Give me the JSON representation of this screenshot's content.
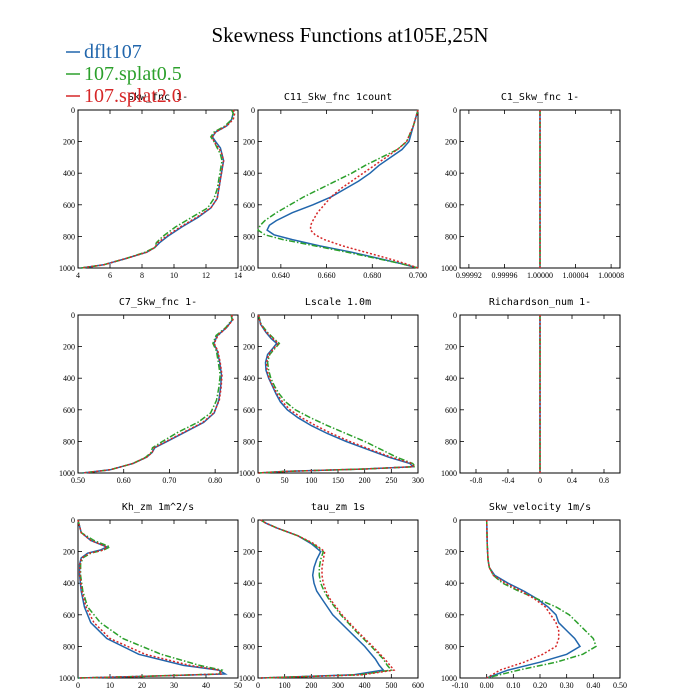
{
  "figure": {
    "title": "Skewness Functions at105E,25N"
  },
  "colors": {
    "dflt107": "#2166ac",
    "splat0_5": "#2ca02c",
    "splat2_0": "#d62728"
  },
  "legend": [
    {
      "label": "dflt107",
      "color": "#2166ac",
      "dash": "solid"
    },
    {
      "label": "107.splat0.5",
      "color": "#2ca02c",
      "dash": "dashdot"
    },
    {
      "label": "107.splat2.0",
      "color": "#d62728",
      "dash": "dot"
    }
  ],
  "chart_data": [
    {
      "type": "line",
      "title": "Skw_fnc 1-",
      "ylim": [
        1000,
        0
      ],
      "xlim": [
        4,
        14
      ],
      "xticks": [
        4,
        6,
        8,
        10,
        12,
        14
      ],
      "xtick_labels": [
        "4",
        "6",
        "8",
        "10",
        "12",
        "14"
      ],
      "yticks": [
        0,
        200,
        400,
        600,
        800,
        1000
      ],
      "y": [
        0,
        20,
        60,
        100,
        140,
        170,
        200,
        240,
        280,
        320,
        380,
        440,
        500,
        560,
        620,
        680,
        740,
        800,
        840,
        870,
        900,
        940,
        980,
        1000
      ],
      "series": [
        {
          "name": "dflt107",
          "values": [
            13.6,
            13.7,
            13.6,
            13.3,
            12.6,
            12.4,
            12.6,
            12.9,
            13.0,
            13.1,
            13.0,
            12.9,
            12.8,
            12.7,
            12.3,
            11.5,
            10.5,
            9.6,
            9.1,
            8.8,
            8.3,
            7.0,
            5.6,
            4.2
          ]
        },
        {
          "name": "107.splat0.5",
          "values": [
            13.6,
            13.7,
            13.6,
            13.2,
            12.5,
            12.3,
            12.5,
            12.7,
            12.9,
            13.0,
            12.9,
            12.8,
            12.7,
            12.5,
            12.1,
            11.1,
            10.1,
            9.3,
            8.9,
            8.8,
            8.2,
            7.0,
            5.6,
            4.2
          ]
        },
        {
          "name": "107.splat2.0",
          "values": [
            13.7,
            13.8,
            13.7,
            13.3,
            12.6,
            12.4,
            12.5,
            12.8,
            13.0,
            13.1,
            13.0,
            12.9,
            12.8,
            12.7,
            12.3,
            11.4,
            10.4,
            9.5,
            9.0,
            8.8,
            8.3,
            7.0,
            5.6,
            4.2
          ]
        }
      ]
    },
    {
      "type": "line",
      "title": "C11_Skw_fnc 1count",
      "ylim": [
        1000,
        0
      ],
      "xlim": [
        0.63,
        0.7
      ],
      "xticks": [
        0.64,
        0.66,
        0.68,
        0.7
      ],
      "xtick_labels": [
        "0.640",
        "0.660",
        "0.680",
        "0.700"
      ],
      "yticks": [
        0,
        200,
        400,
        600,
        800,
        1000
      ],
      "y": [
        0,
        100,
        200,
        250,
        300,
        350,
        400,
        450,
        500,
        550,
        600,
        650,
        700,
        730,
        760,
        790,
        820,
        860,
        900,
        940,
        970,
        1000
      ],
      "series": [
        {
          "name": "dflt107",
          "values": [
            0.7,
            0.698,
            0.696,
            0.693,
            0.688,
            0.683,
            0.679,
            0.674,
            0.668,
            0.662,
            0.654,
            0.645,
            0.638,
            0.635,
            0.634,
            0.637,
            0.645,
            0.657,
            0.671,
            0.683,
            0.692,
            0.7
          ]
        },
        {
          "name": "107.splat0.5",
          "values": [
            0.7,
            0.698,
            0.695,
            0.691,
            0.684,
            0.677,
            0.671,
            0.664,
            0.657,
            0.65,
            0.644,
            0.638,
            0.633,
            0.631,
            0.63,
            0.633,
            0.641,
            0.655,
            0.669,
            0.682,
            0.692,
            0.7
          ]
        },
        {
          "name": "107.splat2.0",
          "values": [
            0.7,
            0.698,
            0.695,
            0.691,
            0.686,
            0.681,
            0.676,
            0.671,
            0.666,
            0.662,
            0.659,
            0.656,
            0.654,
            0.653,
            0.653,
            0.655,
            0.659,
            0.667,
            0.677,
            0.687,
            0.694,
            0.7
          ]
        }
      ]
    },
    {
      "type": "line",
      "title": "C1_Skw_fnc 1-",
      "ylim": [
        1000,
        0
      ],
      "xlim": [
        0.99991,
        1.00009
      ],
      "xticks": [
        0.99992,
        0.99996,
        1.0,
        1.00004,
        1.00008
      ],
      "xtick_labels": [
        "0.99992",
        "0.99996",
        "1.00000",
        "1.00004",
        "1.00008"
      ],
      "yticks": [
        0,
        200,
        400,
        600,
        800,
        1000
      ],
      "y": [
        0,
        1000
      ],
      "series": [
        {
          "name": "dflt107",
          "values": [
            1.0,
            1.0
          ]
        },
        {
          "name": "107.splat0.5",
          "values": [
            1.0,
            1.0
          ]
        },
        {
          "name": "107.splat2.0",
          "values": [
            1.0,
            1.0
          ]
        }
      ]
    },
    {
      "type": "line",
      "title": "C7_Skw_fnc 1-",
      "ylim": [
        1000,
        0
      ],
      "xlim": [
        0.5,
        0.85
      ],
      "xticks": [
        0.5,
        0.6,
        0.7,
        0.8
      ],
      "xtick_labels": [
        "0.50",
        "0.60",
        "0.70",
        "0.80"
      ],
      "yticks": [
        0,
        200,
        400,
        600,
        800,
        1000
      ],
      "y": [
        0,
        30,
        80,
        130,
        180,
        230,
        300,
        380,
        460,
        540,
        620,
        680,
        740,
        800,
        840,
        870,
        900,
        940,
        980,
        1000
      ],
      "series": [
        {
          "name": "dflt107",
          "values": [
            0.835,
            0.838,
            0.825,
            0.805,
            0.797,
            0.805,
            0.81,
            0.814,
            0.812,
            0.808,
            0.798,
            0.775,
            0.735,
            0.695,
            0.668,
            0.662,
            0.65,
            0.62,
            0.57,
            0.51
          ]
        },
        {
          "name": "107.splat0.5",
          "values": [
            0.835,
            0.837,
            0.823,
            0.802,
            0.795,
            0.803,
            0.807,
            0.811,
            0.808,
            0.803,
            0.79,
            0.762,
            0.72,
            0.685,
            0.663,
            0.66,
            0.648,
            0.62,
            0.57,
            0.51
          ]
        },
        {
          "name": "107.splat2.0",
          "values": [
            0.836,
            0.839,
            0.825,
            0.806,
            0.798,
            0.806,
            0.811,
            0.815,
            0.813,
            0.809,
            0.797,
            0.773,
            0.733,
            0.693,
            0.667,
            0.662,
            0.65,
            0.62,
            0.57,
            0.51
          ]
        }
      ]
    },
    {
      "type": "line",
      "title": "Lscale 1.0m",
      "ylim": [
        1000,
        0
      ],
      "xlim": [
        0,
        300
      ],
      "xticks": [
        0,
        50,
        100,
        150,
        200,
        250,
        300
      ],
      "xtick_labels": [
        "0",
        "50",
        "100",
        "150",
        "200",
        "250",
        "300"
      ],
      "yticks": [
        0,
        200,
        400,
        600,
        800,
        1000
      ],
      "y": [
        0,
        60,
        110,
        150,
        180,
        210,
        250,
        300,
        350,
        400,
        450,
        500,
        550,
        600,
        650,
        700,
        750,
        800,
        850,
        900,
        940,
        960,
        975,
        990,
        1000
      ],
      "series": [
        {
          "name": "dflt107",
          "values": [
            1,
            5,
            15,
            25,
            35,
            28,
            18,
            14,
            15,
            20,
            27,
            34,
            42,
            55,
            75,
            100,
            130,
            165,
            205,
            245,
            285,
            290,
            200,
            50,
            1
          ]
        },
        {
          "name": "107.splat0.5",
          "values": [
            1,
            6,
            18,
            30,
            40,
            32,
            22,
            18,
            20,
            24,
            31,
            40,
            52,
            70,
            98,
            130,
            165,
            200,
            230,
            260,
            290,
            295,
            200,
            50,
            1
          ]
        },
        {
          "name": "107.splat2.0",
          "values": [
            1,
            5,
            16,
            28,
            38,
            30,
            20,
            16,
            17,
            21,
            28,
            36,
            46,
            60,
            82,
            108,
            138,
            172,
            210,
            250,
            288,
            292,
            200,
            50,
            1
          ]
        }
      ]
    },
    {
      "type": "line",
      "title": "Richardson_num 1-",
      "ylim": [
        1000,
        0
      ],
      "xlim": [
        -1.0,
        1.0
      ],
      "xticks": [
        -0.8,
        -0.4,
        0,
        0.4,
        0.8
      ],
      "xtick_labels": [
        "-0.8",
        "-0.4",
        "0",
        "0.4",
        "0.8"
      ],
      "yticks": [
        0,
        200,
        400,
        600,
        800,
        1000
      ],
      "y": [
        0,
        1000
      ],
      "series": [
        {
          "name": "dflt107",
          "values": [
            0,
            0
          ]
        },
        {
          "name": "107.splat0.5",
          "values": [
            0,
            0
          ]
        },
        {
          "name": "107.splat2.0",
          "values": [
            0,
            0
          ]
        }
      ]
    },
    {
      "type": "line",
      "title": "Kh_zm 1m^2/s",
      "ylim": [
        1000,
        0
      ],
      "xlim": [
        0,
        50
      ],
      "xticks": [
        0,
        10,
        20,
        30,
        40,
        50
      ],
      "xtick_labels": [
        "0",
        "10",
        "20",
        "30",
        "40",
        "50"
      ],
      "yticks": [
        0,
        200,
        400,
        600,
        800,
        1000
      ],
      "y": [
        0,
        80,
        130,
        170,
        190,
        210,
        240,
        280,
        350,
        450,
        550,
        650,
        750,
        850,
        920,
        950,
        975,
        990,
        1000
      ],
      "series": [
        {
          "name": "dflt107",
          "values": [
            0,
            1,
            4,
            9,
            7,
            3,
            1,
            0.5,
            0.5,
            1,
            2,
            4,
            9,
            19,
            33,
            44,
            46,
            20,
            0
          ]
        },
        {
          "name": "107.splat0.5",
          "values": [
            0,
            1,
            5,
            10,
            8,
            4,
            1.5,
            0.8,
            0.8,
            1.5,
            3,
            7,
            14,
            26,
            38,
            45,
            44,
            20,
            0
          ]
        },
        {
          "name": "107.splat2.0",
          "values": [
            0,
            1,
            4,
            9,
            8,
            3.5,
            1.2,
            0.6,
            0.6,
            1.2,
            2.5,
            5,
            10,
            21,
            35,
            44,
            45,
            20,
            0
          ]
        }
      ]
    },
    {
      "type": "line",
      "title": "tau_zm 1s",
      "ylim": [
        1000,
        0
      ],
      "xlim": [
        0,
        600
      ],
      "xticks": [
        0,
        100,
        200,
        300,
        400,
        500,
        600
      ],
      "xtick_labels": [
        "0",
        "100",
        "200",
        "300",
        "400",
        "500",
        "600"
      ],
      "yticks": [
        0,
        200,
        400,
        600,
        800,
        1000
      ],
      "y": [
        0,
        20,
        50,
        100,
        150,
        200,
        250,
        300,
        350,
        400,
        450,
        500,
        600,
        700,
        800,
        880,
        920,
        950,
        980,
        1000
      ],
      "series": [
        {
          "name": "dflt107",
          "values": [
            10,
            30,
            70,
            150,
            200,
            235,
            220,
            210,
            205,
            210,
            220,
            240,
            280,
            340,
            400,
            440,
            455,
            470,
            360,
            10
          ]
        },
        {
          "name": "107.splat0.5",
          "values": [
            10,
            30,
            70,
            150,
            205,
            245,
            235,
            230,
            230,
            235,
            248,
            265,
            310,
            365,
            425,
            470,
            485,
            500,
            380,
            10
          ]
        },
        {
          "name": "107.splat2.0",
          "values": [
            10,
            30,
            70,
            150,
            210,
            250,
            245,
            240,
            240,
            245,
            255,
            270,
            315,
            370,
            430,
            475,
            495,
            510,
            390,
            10
          ]
        }
      ]
    },
    {
      "type": "line",
      "title": "Skw_velocity 1m/s",
      "ylim": [
        1000,
        0
      ],
      "xlim": [
        -0.1,
        0.5
      ],
      "xticks": [
        -0.1,
        0,
        0.1,
        0.2,
        0.3,
        0.4,
        0.5
      ],
      "xtick_labels": [
        "-0.10",
        "0.00",
        "0.10",
        "0.20",
        "0.30",
        "0.40",
        "0.50"
      ],
      "yticks": [
        0,
        200,
        400,
        600,
        800,
        1000
      ],
      "y": [
        0,
        150,
        250,
        300,
        350,
        400,
        450,
        500,
        550,
        600,
        650,
        700,
        750,
        800,
        850,
        900,
        950,
        1000
      ],
      "series": [
        {
          "name": "dflt107",
          "values": [
            0,
            0.002,
            0.005,
            0.01,
            0.03,
            0.08,
            0.14,
            0.19,
            0.23,
            0.26,
            0.27,
            0.3,
            0.33,
            0.35,
            0.3,
            0.2,
            0.08,
            0.0
          ]
        },
        {
          "name": "107.splat0.5",
          "values": [
            0,
            0.002,
            0.005,
            0.01,
            0.025,
            0.06,
            0.12,
            0.19,
            0.26,
            0.31,
            0.34,
            0.37,
            0.4,
            0.41,
            0.36,
            0.26,
            0.12,
            0.0
          ]
        },
        {
          "name": "107.splat2.0",
          "values": [
            0,
            0.002,
            0.005,
            0.01,
            0.025,
            0.07,
            0.13,
            0.18,
            0.22,
            0.24,
            0.26,
            0.27,
            0.27,
            0.26,
            0.21,
            0.14,
            0.05,
            0.0
          ]
        }
      ]
    }
  ]
}
